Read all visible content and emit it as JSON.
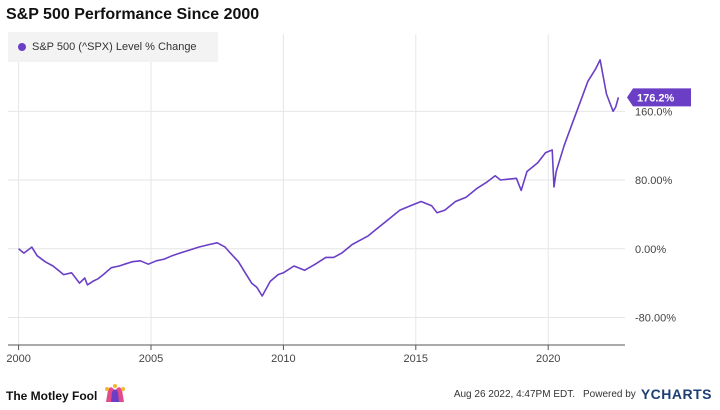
{
  "header": {
    "title": "S&P 500 Performance Since 2000"
  },
  "legend": {
    "label": "S&P 500 (^SPX) Level % Change",
    "color": "#6a3fc6"
  },
  "colors": {
    "line": "#6a3fc6",
    "grid": "#e6e6e6",
    "axis": "#555555",
    "tag_bg": "#6a3fc6",
    "tag_text": "#ffffff"
  },
  "chart_data": {
    "type": "line",
    "title": "S&P 500 Performance Since 2000",
    "xlabel": "",
    "ylabel": "",
    "x_ticks": [
      "2000",
      "2005",
      "2010",
      "2015",
      "2020"
    ],
    "x_tick_values": [
      2000,
      2005,
      2010,
      2015,
      2020
    ],
    "y_tick_values": [
      -80,
      0,
      80,
      160
    ],
    "y_ticks": [
      "-80.00%",
      "0.00%",
      "80.00%",
      "160.0%"
    ],
    "xlim": [
      1999.6,
      2022.9
    ],
    "ylim": [
      -112,
      250
    ],
    "grid": true,
    "legend_position": "top-left",
    "end_label": "176.2%",
    "series": [
      {
        "name": "S&P 500 (^SPX) Level % Change",
        "x": [
          2000.0,
          2000.2,
          2000.5,
          2000.7,
          2001.0,
          2001.3,
          2001.5,
          2001.7,
          2002.0,
          2002.3,
          2002.5,
          2002.6,
          2002.8,
          2003.0,
          2003.2,
          2003.5,
          2003.8,
          2004.0,
          2004.3,
          2004.6,
          2004.9,
          2005.2,
          2005.5,
          2005.8,
          2006.0,
          2006.4,
          2006.8,
          2007.2,
          2007.5,
          2007.8,
          2008.0,
          2008.3,
          2008.6,
          2008.8,
          2009.0,
          2009.2,
          2009.5,
          2009.8,
          2010.0,
          2010.4,
          2010.8,
          2011.2,
          2011.6,
          2011.9,
          2012.2,
          2012.6,
          2012.9,
          2013.2,
          2013.6,
          2014.0,
          2014.4,
          2014.8,
          2015.2,
          2015.6,
          2015.8,
          2016.1,
          2016.5,
          2016.9,
          2017.3,
          2017.7,
          2018.0,
          2018.2,
          2018.8,
          2018.98,
          2019.2,
          2019.6,
          2019.9,
          2020.15,
          2020.22,
          2020.3,
          2020.6,
          2020.9,
          2021.2,
          2021.5,
          2021.8,
          2021.96,
          2022.2,
          2022.45,
          2022.55,
          2022.65
        ],
        "values": [
          0,
          -5,
          2,
          -8,
          -15,
          -20,
          -25,
          -30,
          -28,
          -40,
          -34,
          -42,
          -38,
          -35,
          -30,
          -22,
          -20,
          -18,
          -15,
          -14,
          -18,
          -14,
          -12,
          -8,
          -6,
          -2,
          2,
          5,
          7,
          2,
          -5,
          -15,
          -30,
          -40,
          -45,
          -55,
          -38,
          -30,
          -28,
          -20,
          -25,
          -18,
          -10,
          -10,
          -5,
          5,
          10,
          15,
          25,
          35,
          45,
          50,
          55,
          50,
          42,
          45,
          55,
          60,
          70,
          78,
          85,
          80,
          82,
          68,
          90,
          100,
          112,
          115,
          72,
          90,
          120,
          145,
          170,
          195,
          210,
          220,
          180,
          160,
          165,
          176.2
        ]
      }
    ]
  },
  "footer": {
    "brand": "The Motley Fool",
    "jester_icon": "jester-hat-icon",
    "timestamp": "Aug 26 2022, 4:47PM EDT.",
    "powered_by": "Powered by",
    "ycharts_y": "Y",
    "ycharts_rest": "CHARTS"
  }
}
